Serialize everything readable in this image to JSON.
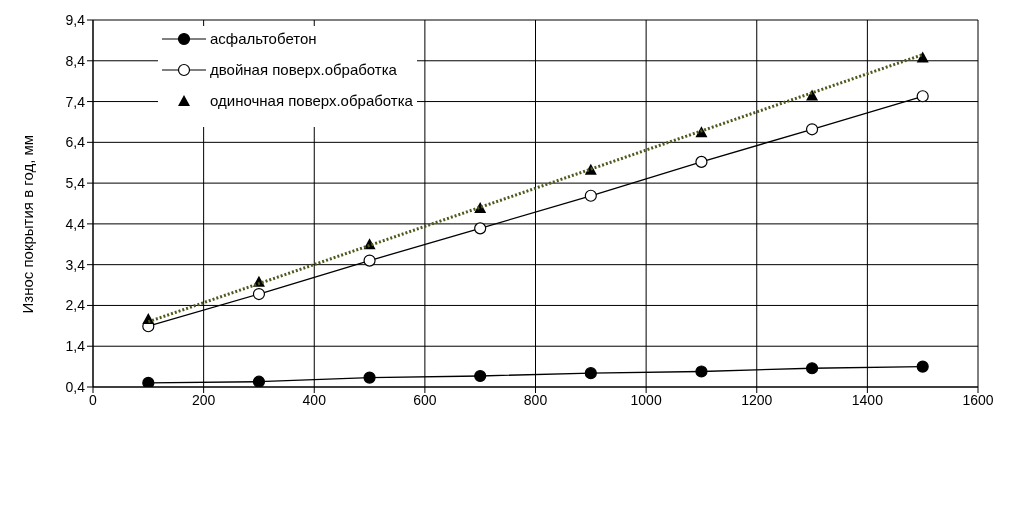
{
  "chart_data": {
    "type": "line",
    "ylabel": "Износ покрытия в год, мм",
    "xlim": [
      0,
      1600
    ],
    "xticks": [
      0,
      200,
      400,
      600,
      800,
      1000,
      1200,
      1400,
      1600
    ],
    "ylim": [
      0.4,
      9.4
    ],
    "yticks": [
      {
        "value": 0.4,
        "label": "0,4"
      },
      {
        "value": 1.4,
        "label": "1,4"
      },
      {
        "value": 2.4,
        "label": "2,4"
      },
      {
        "value": 3.4,
        "label": "3,4"
      },
      {
        "value": 4.4,
        "label": "4,4"
      },
      {
        "value": 5.4,
        "label": "5,4"
      },
      {
        "value": 6.4,
        "label": "6,4"
      },
      {
        "value": 7.4,
        "label": "7,4"
      },
      {
        "value": 8.4,
        "label": "8,4"
      },
      {
        "value": 9.4,
        "label": "9,4"
      }
    ],
    "grid": true,
    "legend": "top left",
    "line_style": "solid",
    "x": [
      100,
      300,
      500,
      700,
      900,
      1100,
      1300,
      1500
    ],
    "series": [
      {
        "name": "асфальтобетон",
        "marker": "circle",
        "color": "#000000",
        "values": [
          0.5,
          0.53,
          0.63,
          0.67,
          0.74,
          0.78,
          0.86,
          0.9
        ]
      },
      {
        "name": "двойная поверх.обработка",
        "marker": "circle",
        "color": "#ffffff",
        "values": [
          1.89,
          2.68,
          3.5,
          4.29,
          5.09,
          5.92,
          6.72,
          7.53
        ]
      },
      {
        "name": "одиночная поверх.обработка",
        "type": "scatter",
        "marker": "triangle",
        "color": "#000000",
        "values": [
          2.07,
          2.98,
          3.9,
          4.79,
          5.73,
          6.65,
          7.55,
          8.48
        ]
      },
      {
        "marker": "none",
        "line_style": "dotted",
        "color": "#4d5a1e",
        "x": [
          100,
          1500
        ],
        "values": [
          2.0,
          8.55
        ]
      }
    ]
  }
}
